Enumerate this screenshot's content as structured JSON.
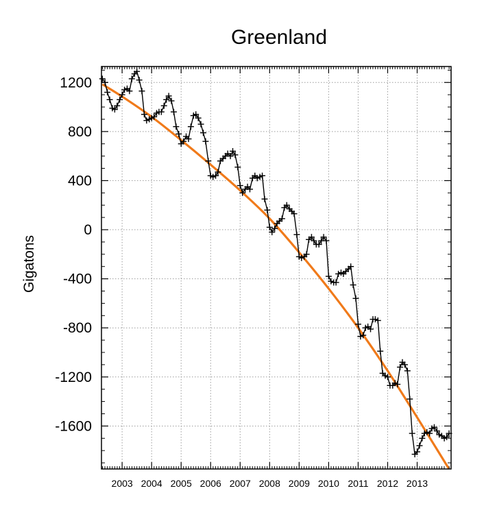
{
  "chart_data": {
    "type": "line",
    "title": "Greenland",
    "xlabel": "",
    "ylabel": "Gigatons",
    "xlim": [
      2002.3,
      2014.15
    ],
    "ylim": [
      -1950,
      1330
    ],
    "grid": true,
    "x_ticks": [
      2003,
      2004,
      2005,
      2006,
      2007,
      2008,
      2009,
      2010,
      2011,
      2012,
      2013
    ],
    "y_ticks": [
      1200,
      800,
      400,
      0,
      -400,
      -800,
      -1200,
      -1600
    ],
    "y_tick_labels": [
      "1200",
      "800",
      "400",
      "0",
      "-400",
      "-800",
      "-1200",
      "-1600"
    ],
    "colors": {
      "observed": "#000000",
      "fit": "#f07a1a"
    },
    "series": [
      {
        "kind": "observed",
        "x": [
          2002.33,
          2002.42,
          2002.5,
          2002.58,
          2002.67,
          2002.75,
          2002.83,
          2002.92,
          2003.0,
          2003.08,
          2003.17,
          2003.25,
          2003.33,
          2003.42,
          2003.5,
          2003.58,
          2003.67,
          2003.75,
          2003.83,
          2003.92,
          2004.0,
          2004.08,
          2004.17,
          2004.25,
          2004.33,
          2004.42,
          2004.5,
          2004.58,
          2004.67,
          2004.75,
          2004.83,
          2004.92,
          2005.0,
          2005.08,
          2005.17,
          2005.25,
          2005.33,
          2005.42,
          2005.5,
          2005.58,
          2005.67,
          2005.75,
          2005.83,
          2005.92,
          2006.0,
          2006.08,
          2006.17,
          2006.25,
          2006.33,
          2006.42,
          2006.5,
          2006.58,
          2006.67,
          2006.75,
          2006.83,
          2006.92,
          2007.0,
          2007.08,
          2007.17,
          2007.25,
          2007.33,
          2007.42,
          2007.5,
          2007.58,
          2007.67,
          2007.75,
          2007.83,
          2007.92,
          2008.0,
          2008.08,
          2008.17,
          2008.25,
          2008.33,
          2008.42,
          2008.5,
          2008.58,
          2008.67,
          2008.75,
          2008.83,
          2008.92,
          2009.0,
          2009.08,
          2009.17,
          2009.25,
          2009.33,
          2009.42,
          2009.5,
          2009.58,
          2009.67,
          2009.75,
          2009.83,
          2009.92,
          2010.0,
          2010.08,
          2010.17,
          2010.25,
          2010.33,
          2010.42,
          2010.5,
          2010.58,
          2010.67,
          2010.75,
          2010.83,
          2010.92,
          2011.0,
          2011.08,
          2011.17,
          2011.25,
          2011.33,
          2011.42,
          2011.5,
          2011.58,
          2011.67,
          2011.75,
          2011.83,
          2011.92,
          2012.0,
          2012.08,
          2012.17,
          2012.25,
          2012.33,
          2012.42,
          2012.5,
          2012.58,
          2012.67,
          2012.75,
          2012.83,
          2012.92,
          2013.0,
          2013.08,
          2013.17,
          2013.25,
          2013.33,
          2013.42,
          2013.5,
          2013.58,
          2013.67,
          2013.75,
          2013.83,
          2013.92,
          2014.0,
          2014.08
        ],
        "values": [
          1230,
          1200,
          1120,
          1060,
          990,
          980,
          1010,
          1060,
          1100,
          1140,
          1150,
          1130,
          1230,
          1270,
          1290,
          1220,
          1130,
          940,
          890,
          900,
          910,
          920,
          950,
          960,
          960,
          1010,
          1060,
          1090,
          1050,
          960,
          840,
          780,
          700,
          720,
          760,
          740,
          840,
          930,
          940,
          910,
          860,
          790,
          720,
          560,
          440,
          430,
          440,
          470,
          560,
          580,
          600,
          620,
          600,
          640,
          610,
          510,
          360,
          300,
          330,
          350,
          330,
          420,
          440,
          420,
          430,
          440,
          250,
          160,
          20,
          -20,
          10,
          50,
          70,
          90,
          180,
          200,
          170,
          150,
          130,
          -40,
          -220,
          -230,
          -220,
          -200,
          -80,
          -60,
          -90,
          -120,
          -120,
          -90,
          -60,
          -90,
          -380,
          -420,
          -430,
          -430,
          -360,
          -350,
          -360,
          -340,
          -320,
          -300,
          -450,
          -560,
          -770,
          -870,
          -860,
          -800,
          -790,
          -810,
          -730,
          -730,
          -740,
          -990,
          -1170,
          -1190,
          -1200,
          -1270,
          -1270,
          -1250,
          -1260,
          -1120,
          -1080,
          -1100,
          -1150,
          -1380,
          -1660,
          -1830,
          -1810,
          -1760,
          -1700,
          -1660,
          -1650,
          -1660,
          -1620,
          -1610,
          -1640,
          -1670,
          -1680,
          -1700,
          -1690,
          -1660
        ]
      },
      {
        "kind": "fit",
        "x": [
          2002.33,
          2003.0,
          2004.0,
          2005.0,
          2006.0,
          2007.0,
          2008.0,
          2009.0,
          2010.0,
          2011.0,
          2012.0,
          2013.0,
          2014.08
        ],
        "values": [
          1185,
          1085,
          920,
          730,
          530,
          320,
          90,
          -185,
          -480,
          -800,
          -1150,
          -1530,
          -1950
        ]
      }
    ]
  }
}
